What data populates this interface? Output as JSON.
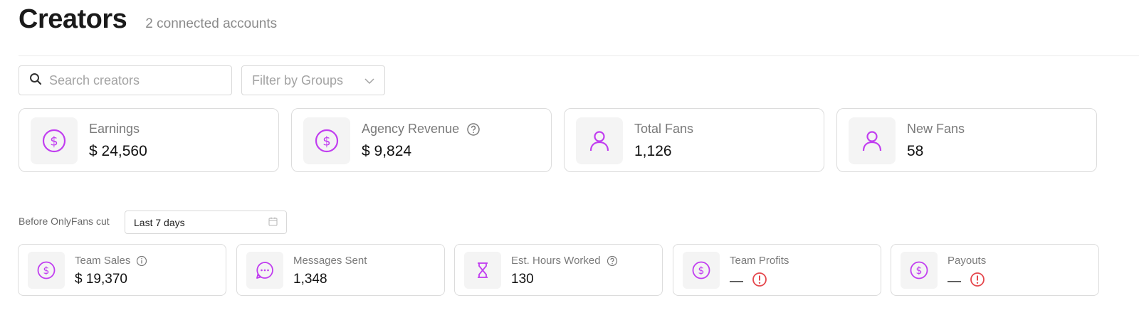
{
  "header": {
    "title": "Creators",
    "subtitle": "2 connected accounts"
  },
  "search": {
    "placeholder": "Search creators",
    "icon": "search-icon"
  },
  "filter": {
    "label": "Filter by Groups",
    "icon": "chevron-down-icon"
  },
  "summary_cards": [
    {
      "label": "Earnings",
      "value": "$ 24,560",
      "icon": "dollar-circle-icon"
    },
    {
      "label": "Agency Revenue",
      "value": "$ 9,824",
      "icon": "dollar-circle-icon",
      "help": true
    },
    {
      "label": "Total Fans",
      "value": "1,126",
      "icon": "user-icon"
    },
    {
      "label": "New Fans",
      "value": "58",
      "icon": "user-icon"
    }
  ],
  "range": {
    "label": "Before OnlyFans cut",
    "value": "Last 7 days",
    "icon": "calendar-icon"
  },
  "team_cards": [
    {
      "label": "Team Sales",
      "value": "$ 19,370",
      "icon": "dollar-circle-icon",
      "info": true
    },
    {
      "label": "Messages Sent",
      "value": "1,348",
      "icon": "chat-bubble-icon"
    },
    {
      "label": "Est. Hours Worked",
      "value": "130",
      "icon": "hourglass-icon",
      "help": true
    },
    {
      "label": "Team Profits",
      "value": "—",
      "icon": "dollar-circle-icon",
      "warning": true
    },
    {
      "label": "Payouts",
      "value": "—",
      "icon": "dollar-circle-icon",
      "warning": true
    }
  ],
  "colors": {
    "accent": "#c13ef0",
    "warning": "#e5484d",
    "muted": "#7a7a7a"
  }
}
